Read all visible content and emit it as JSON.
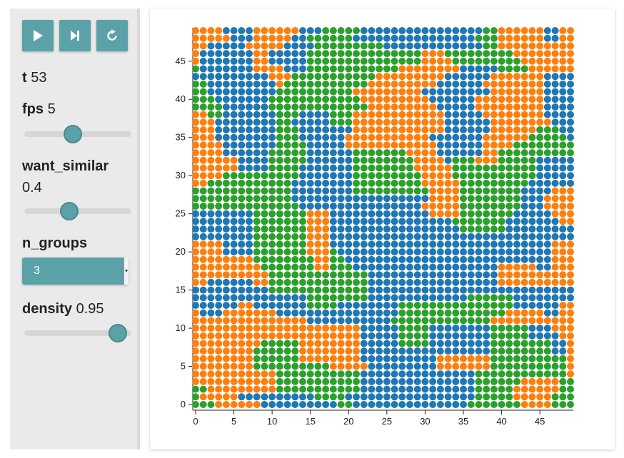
{
  "controls": {
    "play_icon": "play-icon",
    "step_icon": "step-forward-icon",
    "reset_icon": "reset-icon",
    "t_label": "t",
    "t_value": "53",
    "fps_label": "fps",
    "fps_value": "5",
    "fps_slider": 0.45,
    "want_similar_label": "want_similar",
    "want_similar_value": "0.4",
    "want_similar_slider": 0.42,
    "n_groups_label": "n_groups",
    "n_groups_value": "3",
    "density_label": "density",
    "density_value": "0.95",
    "density_slider": 0.87
  },
  "colors": {
    "accent": "#5ba2a8",
    "group_0": "#ff7f0e",
    "group_1": "#1f77b4",
    "group_2": "#2ca02c"
  },
  "chart_data": {
    "type": "scatter",
    "title": "",
    "xlabel": "",
    "ylabel": "",
    "xlim": [
      0,
      49
    ],
    "ylim": [
      0,
      49
    ],
    "x_ticks": [
      0,
      5,
      10,
      15,
      20,
      25,
      30,
      35,
      40,
      45
    ],
    "y_ticks": [
      0,
      5,
      10,
      15,
      20,
      25,
      30,
      35,
      40,
      45
    ],
    "grid": false,
    "legend": "none",
    "cell_encoding": "each row string is one y value (first string = y 49, last = y 0); character index = x; O = orange group, B = blue group, G = green group, . = empty cell",
    "rows": [
      "OOOOBBBBOOOOOOBBBGGGGGBBBBBBBBBBBBBBBBGGOOOOOOBBOO",
      "OOOOOBBBOOOOOBBGGGGGGBBBBBBBBBBBBBBBBGGGOOOOOOBBOO",
      "OOBBBBBOOOOOBBBBGGGGGGGGGBBBBBBBBBBBBBGGOOOOOOOOOO",
      "OBBBBBBBOOBBBBBGGGGGGGGGGGGGGGOOOGGGGGGGGGOOOOOOOO",
      "OBBBBBBBOOBBBBBGGGGGGGGGGGGGGGOOOOGGGGGGGGGOOOOOOO",
      "GBBBBBBBOOOOBBBGGGGGGGGGGGGOOOOOOOOBBBBBGGGGOOOOOO",
      "BBBBBBBBBBOOOGGGGGGGGGGGOOOOOOOOOBBBBBBOOOOOOOBBBB",
      "GGBBBBBBBBBOGGGGGGGGGGGOOOOOOOOOBBBBBBOOOOOOOOBBBB",
      "GGBBBBBBBBBGGGGGGGGGGOOOOOOOOOBBBBBBBBBOOOOOOOBBBB",
      "GGGBBBBBBBGGGGGGGGGGGGOOOOOOOOOBBBBBBOOOOOOOOOBBBB",
      "GGGGBBBBBBGGGGGGGGGGGGGOOOOOOOOOBBBBBOOOOOOOOOBBBB",
      "OOGGBBBBBBBGGGBBBBGGGOOOOOOOOOOOOBBBBBOOOOOOOOBBBB",
      "OOOBBBBBBBBGGBBBBBGGGOOOOOOOOOOOOBBBBBBOOOOOOOOBBB",
      "OOOBBBBBBBBGGGBBBBBBBOOOOOOOOOOOOBBBBBBOOOOOOGGGBB",
      "OOOBBBBBBBBGGGBBBBBBOOOOOOOOOOOBBBBBBBOOOOOOGGGGGB",
      "OOOOBBBBBBBGGGGBBBBBOOOOOOOOOOOOBBBBBBOOOOGGGGGGGG",
      "OOOOBBBBBBGGGGGBBBBBBGGGGGGGOOOOBBBBBBOOGGGGGGGGGG",
      "OOOOOOBBBBGGGGGBBBBBBGGGGGGGGOOOOBGGGOOOGGGGGBBBBB",
      "OOOOOOBBBBGGGGBBBBBBBGGGGGGGGOOOOOGGGGGGGGGGGBBBBB",
      "OOOOGGGGGGGGGGBBBBBBBGGGGGGGGGOOOOGGGGGGGGGGGBBBBB",
      "OOGGGGGGGGGGGBBBBBBBBGGGGGGGGGOOOOOGGGGGGGGGBBBBBB",
      "GGGGGGGGGGGGGBBBBBBBBGGGGGGGGGGOOOOGGGGGGGGBBBBOOO",
      "GGGGGGGGGGGGGBBBBBBBBBBBBBBBBBBOOOOGGGGGGGGBBBOOOO",
      "GGGGGGGGGGGGGGBBBBBBBBBBBBBBBBOOOOOGGGGGGGGBBBOOOO",
      "BBBBBBBBGGGGGGGOOOBBBBBBBBBBBBBOOOOGGGGGGGBBBBBOOO",
      "BBBBBBBBGGGGGGGOOOBBBBBBBBBBBBBBBBGGGGGGGBBBBBBBOO",
      "BBBBBBBBGGGGGGGOOOBBBBBBBBBBBBBBBBBGGGGGGBBBBBBBBB",
      "BBBBBBBBGGGGGGGOOOBBBBBBBBBBBBBBBBBBBBBBBBBBBBBBBB",
      "OOOOBBBBGGGGGGGOOOBBBBBBBBBBBBBBBBBBBBBBBBBBBBBOOO",
      "OOOOBBBBGGGGGGGOOOGBBBBBBBBBBBBBBBBBBBBBBBBBBBBOOO",
      "OOOOOOOOGGGGGGGGOOGGBBBBBBBBBBBBBBBBBBBBBBBBBBBOOO",
      "OOOOOOOOOGGGGGGGOOGGGBBBBBBBBBBBBBBBBBBBOOOOOBBOOO",
      "OOOOOOOOOOGGGGGGGGGGGGGBBBBBBBBBBBBBBBBBOOOOOOOOOO",
      "OOBBBBBBOOGGGGGGGGGGGGGBBBBBBBBBBBBBBBBBOOOOOOOOOO",
      "BBBBBBBBBBGGGGGGGGGGGGGBBBBBBBBBBBBBBBBBBBBBBBBBBB",
      "BBBBBBBBBBBBBBBGGGGGGGGBBBBBBBBBBBBBGGGGGGBBBBBBBB",
      "BBBBBBOOBBBBBBBGGGGBBBBBBBBGGGGGGGGGGGGGGGBBBBBBOO",
      "OBBBOOOOOOOBBBBBBBBBBBBBBBBGGGGGGGGGGGGGGOOOOOBBOO",
      "OOOOOOOOOOOOOOOBBBBBBBBBBBGGGGGGGGGGGGGOOOOOOOOOOO",
      "OOOOOOOOOOOOOOOOOOOOOOBBBBBGGGGBBBBBBBBGGGGGBBBOOO",
      "OOOOOOOOOOOOOOOOOOOOOOBBBBBGGGGBBBBBBBBGGGGGBBBBOO",
      "OOOOOOOOOGGGGGOOOOOOOOBBBBBGGGGBBBBBBBBGGGGGGGGBBO",
      "OOOOOOOOGGGGGGOOOOOOOOBBBBBBBBBBBBBBBBBGGGGGGGGBBO",
      "OOOOOOOOGGGGGGOOOOOOOOBBBBBBBBBBOOOOOOOGGGGGGGGGGO",
      "OOOOOOOOGGGGGGGGGGOOOOOBBBBBBBBBOOOOOOOGGGGGGGGGGO",
      "OOOOOOOOOOOGGGGGGGGGGGBBBBBBBBBBBBBBBGGGGGGGGGGGGO",
      "OOOOOOOOOOOGGGGGGGGGGGBBBBBBBBBBBBBBBGGGGGGOOOOOGG",
      "GGOOOOOOOOOGGGGGGGGGGGBBBBBBBBBBBBBBBGGGGGOOOOOOGG",
      "GOOOOOBBBBBBBBBBGGGGBBBBBBBBBBBBBBBBBGGGGGOOOOOGGG",
      "GGGOOOOOOBBBBBBBBBBGGBBBBBBBBBBBBBBBGGGGGGGOOOOGGG"
    ]
  }
}
